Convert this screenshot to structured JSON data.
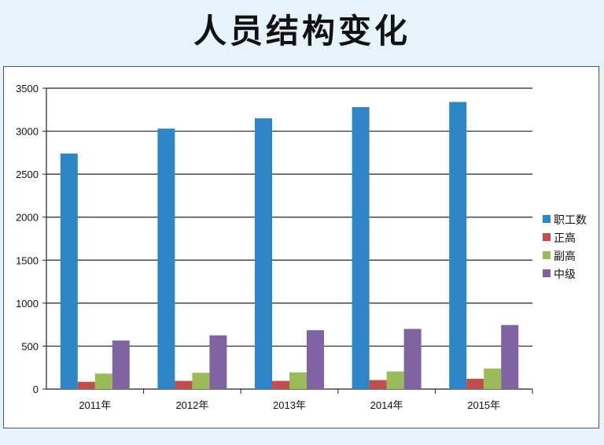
{
  "title": "人员结构变化",
  "chart_data": {
    "type": "bar",
    "categories": [
      "2011年",
      "2012年",
      "2013年",
      "2014年",
      "2015年"
    ],
    "series": [
      {
        "name": "职工数",
        "color": "#2e86c8",
        "values": [
          2740,
          3030,
          3150,
          3280,
          3340
        ]
      },
      {
        "name": "正高",
        "color": "#c0504d",
        "values": [
          85,
          95,
          95,
          105,
          120
        ]
      },
      {
        "name": "副高",
        "color": "#9bbb59",
        "values": [
          180,
          190,
          195,
          205,
          240
        ]
      },
      {
        "name": "中级",
        "color": "#8064a2",
        "values": [
          565,
          625,
          685,
          700,
          745
        ]
      }
    ],
    "ylim": [
      0,
      3500
    ],
    "yticks": [
      0,
      500,
      1000,
      1500,
      2000,
      2500,
      3000,
      3500
    ],
    "grid": true,
    "legend_position": "right"
  }
}
